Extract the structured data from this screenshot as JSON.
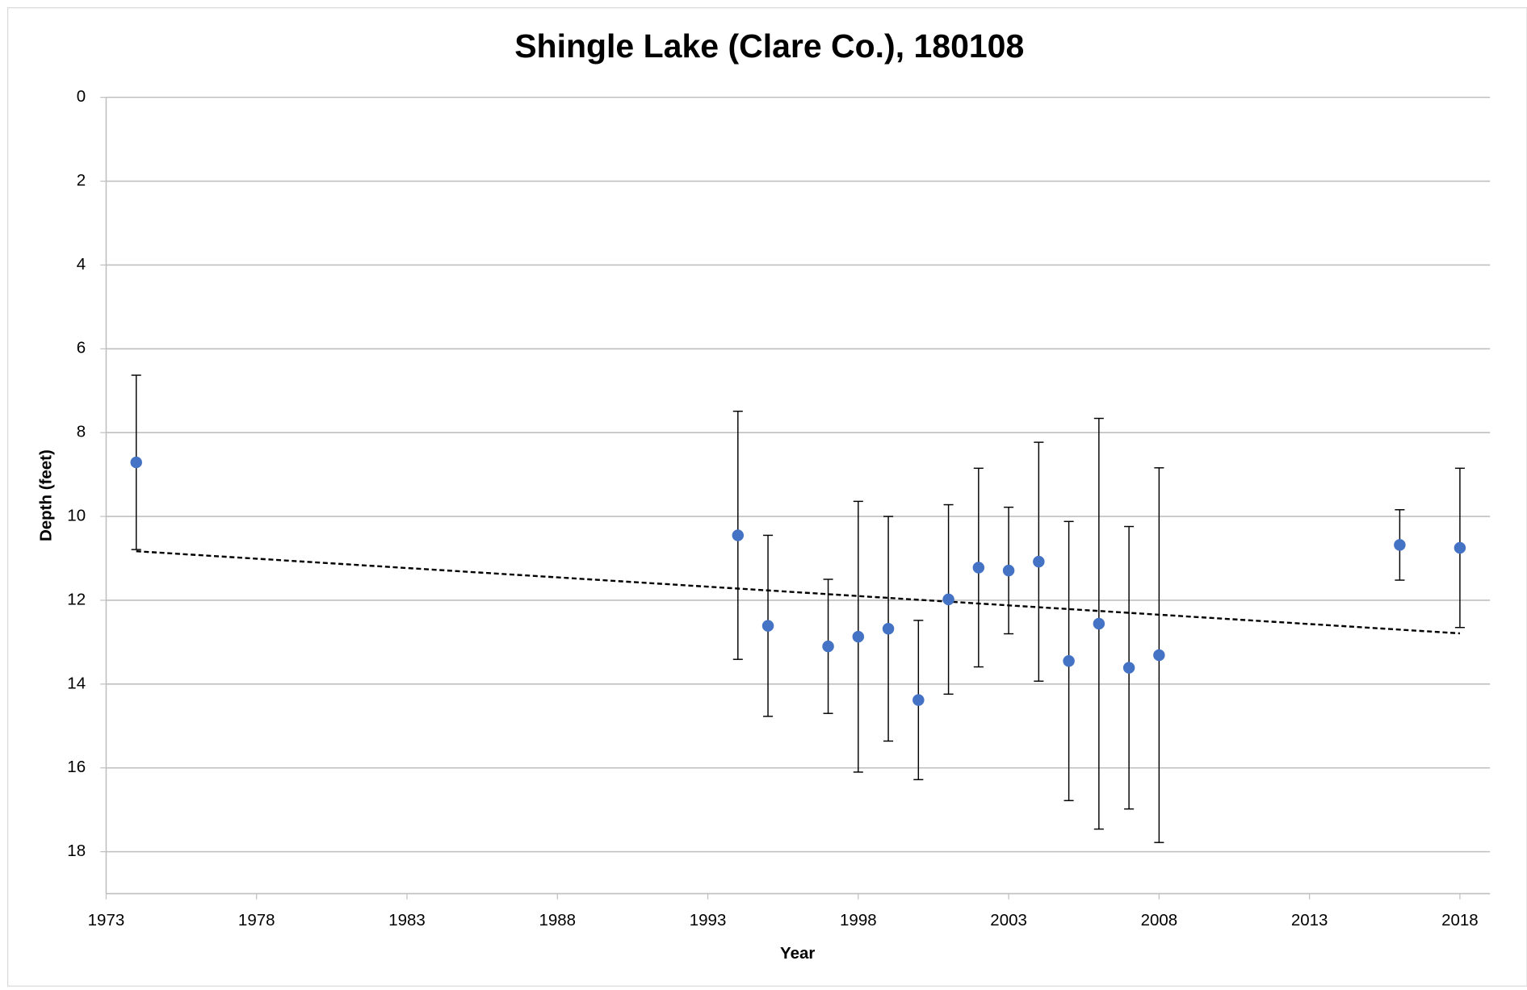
{
  "chart_data": {
    "type": "scatter",
    "title": "Shingle Lake (Clare Co.), 180108",
    "x_label": "Year",
    "y_label": "Depth (feet)",
    "x": [
      1974,
      1994,
      1995,
      1997,
      1998,
      1999,
      2000,
      2001,
      2002,
      2003,
      2004,
      2005,
      2006,
      2007,
      2008,
      2016,
      2018
    ],
    "values": [
      8.71,
      10.45,
      12.61,
      13.1,
      12.87,
      12.68,
      14.38,
      11.98,
      11.22,
      11.29,
      11.08,
      13.45,
      12.56,
      13.61,
      13.31,
      10.68,
      10.75
    ],
    "errors": [
      2.08,
      2.96,
      2.16,
      1.6,
      3.23,
      2.68,
      1.9,
      2.26,
      2.37,
      1.51,
      2.85,
      3.33,
      4.9,
      3.37,
      4.47,
      0.84,
      1.9
    ],
    "color": "#4472c4",
    "trendline": {
      "x": [
        1974,
        2018
      ],
      "values": [
        10.83,
        12.79
      ],
      "color": "#000000"
    },
    "xlim": [
      1973,
      2019
    ],
    "xticks": [
      1973,
      1978,
      1983,
      1988,
      1993,
      1998,
      2003,
      2008,
      2013,
      2018
    ],
    "ylim": [
      0,
      19
    ],
    "yticks": [
      0,
      2,
      4,
      6,
      8,
      10,
      12,
      14,
      16,
      18
    ],
    "y_inverted": true,
    "grid": true
  }
}
